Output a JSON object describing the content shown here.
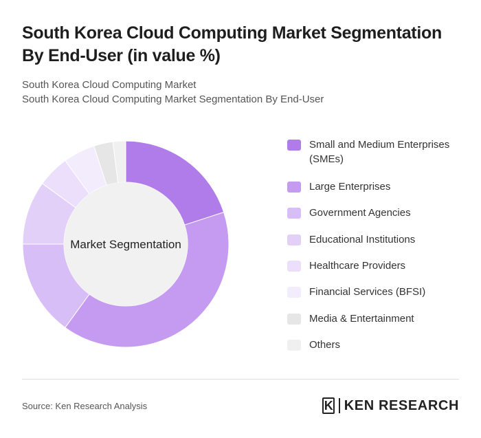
{
  "title": "South Korea Cloud Computing Market Segmentation By End-User (in value %)",
  "subtitle": {
    "line1": "South Korea Cloud Computing Market",
    "line2": "South Korea Cloud Computing Market Segmentation By End-User"
  },
  "chart_data": {
    "type": "pie",
    "variant": "donut",
    "center_label": "Market Segmentation",
    "categories": [
      "Small and Medium Enterprises (SMEs)",
      "Large Enterprises",
      "Government Agencies",
      "Educational Institutions",
      "Healthcare Providers",
      "Financial Services (BFSI)",
      "Media & Entertainment",
      "Others"
    ],
    "values": [
      20,
      40,
      15,
      10,
      5,
      5,
      3,
      2
    ],
    "colors": [
      "#b07ce9",
      "#c49bf0",
      "#d8bef7",
      "#e3d0f9",
      "#ecdffb",
      "#f3ecfd",
      "#e6e6e6",
      "#f0f0f0"
    ],
    "legend_position": "right"
  },
  "source": "Source: Ken Research Analysis",
  "brand": {
    "mark": "K",
    "name": "KEN RESEARCH"
  }
}
